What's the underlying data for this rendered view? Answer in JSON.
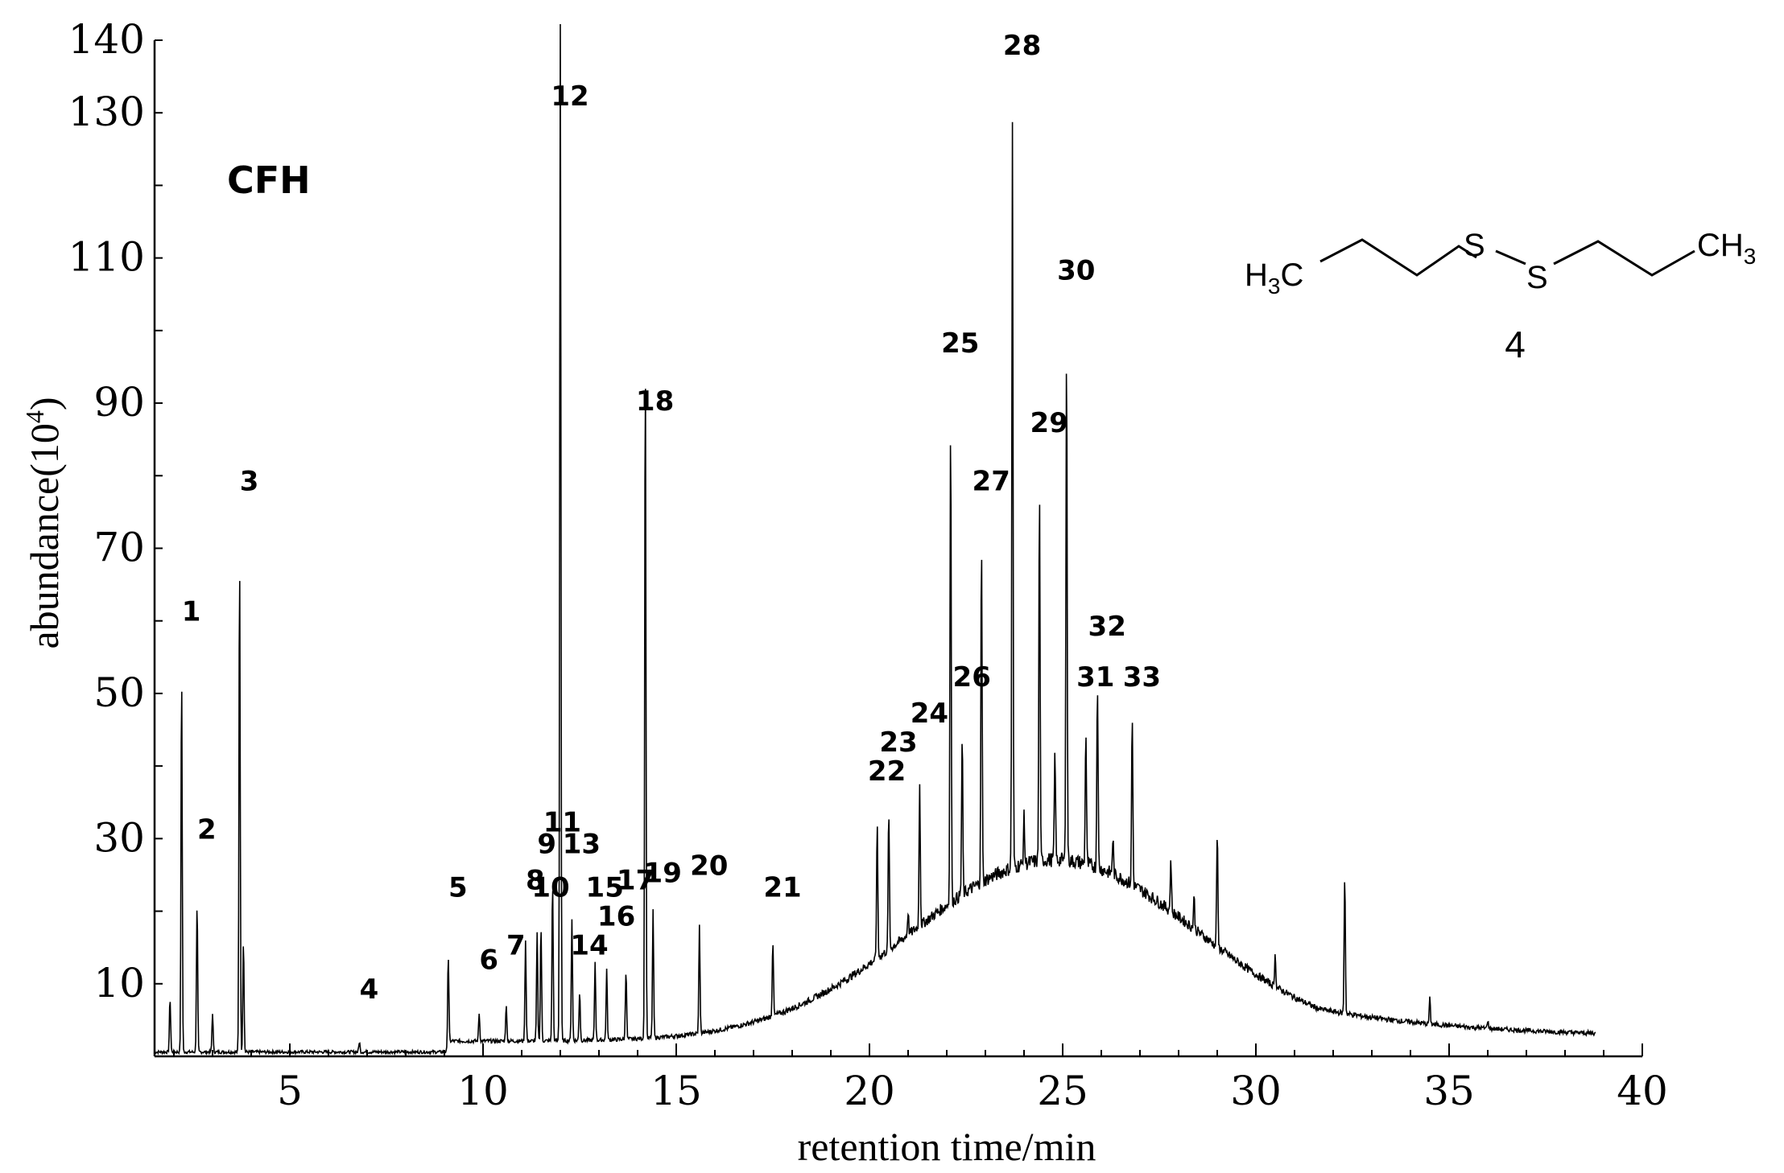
{
  "chart_data": {
    "type": "line",
    "sample_label": "CFH",
    "xlabel": "retention time/min",
    "ylabel_main": "abundance(10",
    "ylabel_sup": "4",
    "ylabel_close": ")",
    "xlim": [
      1.5,
      40
    ],
    "ylim": [
      0,
      140
    ],
    "x_ticks": [
      5,
      10,
      15,
      20,
      25,
      30,
      35,
      40
    ],
    "x_tick_labels": [
      "5",
      "10",
      "15",
      "20",
      "25",
      "30",
      "35",
      "40"
    ],
    "y_ticks": [
      10,
      30,
      50,
      70,
      90,
      110,
      130,
      140
    ],
    "y_tick_labels": [
      "10",
      "30",
      "50",
      "70",
      "90",
      "110",
      "130",
      "140"
    ],
    "series": [
      {
        "color": "#000000",
        "peaks": [
          {
            "label": "1",
            "rt": 2.2,
            "height": 53,
            "label_y": 60
          },
          {
            "label": "2",
            "rt": 2.6,
            "height": 21,
            "label_y": 30
          },
          {
            "label": "3",
            "rt": 3.7,
            "height": 69,
            "label_y": 78
          },
          {
            "label": "4",
            "rt": 6.8,
            "height": 2,
            "label_y": 8
          },
          {
            "label": "5",
            "rt": 9.1,
            "height": 14,
            "label_y": 22
          },
          {
            "label": "6",
            "rt": 9.9,
            "height": 6,
            "label_y": 12
          },
          {
            "label": "7",
            "rt": 10.6,
            "height": 7,
            "label_y": 14
          },
          {
            "label": "8",
            "rt": 11.1,
            "height": 16,
            "label_y": 23
          },
          {
            "label": "9",
            "rt": 11.4,
            "height": 17,
            "label_y": 28
          },
          {
            "label": "10",
            "rt": 11.5,
            "height": 18,
            "label_y": 22
          },
          {
            "label": "11",
            "rt": 11.8,
            "height": 24,
            "label_y": 31
          },
          {
            "label": "12",
            "rt": 12.0,
            "height": 150,
            "label_y": 131
          },
          {
            "label": "13",
            "rt": 12.3,
            "height": 19,
            "label_y": 28
          },
          {
            "label": "14",
            "rt": 12.5,
            "height": 9,
            "label_y": 14
          },
          {
            "label": "15",
            "rt": 12.9,
            "height": 13,
            "label_y": 22
          },
          {
            "label": "16",
            "rt": 13.2,
            "height": 12,
            "label_y": 18
          },
          {
            "label": "17",
            "rt": 13.7,
            "height": 12,
            "label_y": 23
          },
          {
            "label": "18",
            "rt": 14.2,
            "height": 97,
            "label_y": 89
          },
          {
            "label": "19",
            "rt": 14.4,
            "height": 20,
            "label_y": 24
          },
          {
            "label": "20",
            "rt": 15.6,
            "height": 18,
            "label_y": 25
          },
          {
            "label": "21",
            "rt": 17.5,
            "height": 16,
            "label_y": 22
          },
          {
            "label": "22",
            "rt": 20.2,
            "height": 32,
            "label_y": 38
          },
          {
            "label": "23",
            "rt": 20.5,
            "height": 34,
            "label_y": 42
          },
          {
            "label": "24",
            "rt": 21.3,
            "height": 38,
            "label_y": 46
          },
          {
            "label": "25",
            "rt": 22.1,
            "height": 88,
            "label_y": 97
          },
          {
            "label": "26",
            "rt": 22.4,
            "height": 44,
            "label_y": 51
          },
          {
            "label": "27",
            "rt": 22.9,
            "height": 71,
            "label_y": 78
          },
          {
            "label": "28",
            "rt": 23.7,
            "height": 129,
            "label_y": 138
          },
          {
            "label": "29",
            "rt": 24.4,
            "height": 78,
            "label_y": 86
          },
          {
            "label": "30",
            "rt": 25.1,
            "height": 98,
            "label_y": 107
          },
          {
            "label": "31",
            "rt": 25.6,
            "height": 45,
            "label_y": 51
          },
          {
            "label": "32",
            "rt": 25.9,
            "height": 52,
            "label_y": 58
          },
          {
            "label": "33",
            "rt": 26.8,
            "height": 47,
            "label_y": 51
          }
        ],
        "unlabeled_peaks": [
          {
            "rt": 1.9,
            "height": 8
          },
          {
            "rt": 3.0,
            "height": 6
          },
          {
            "rt": 3.8,
            "height": 16
          },
          {
            "rt": 21.0,
            "height": 20
          },
          {
            "rt": 24.0,
            "height": 33
          },
          {
            "rt": 24.8,
            "height": 42
          },
          {
            "rt": 26.3,
            "height": 30
          },
          {
            "rt": 27.8,
            "height": 27
          },
          {
            "rt": 28.4,
            "height": 22
          },
          {
            "rt": 29.0,
            "height": 31
          },
          {
            "rt": 30.5,
            "height": 14
          },
          {
            "rt": 32.3,
            "height": 25
          },
          {
            "rt": 34.5,
            "height": 8
          },
          {
            "rt": 36.0,
            "height": 5
          }
        ]
      }
    ]
  },
  "structure": {
    "left_group": "H3C",
    "left_group_main": "H",
    "left_group_sub": "3",
    "left_group_tail": "C",
    "right_group_main": "CH",
    "right_group_sub": "3",
    "atom_s1": "S",
    "atom_s2": "S",
    "compound_number": "4"
  }
}
